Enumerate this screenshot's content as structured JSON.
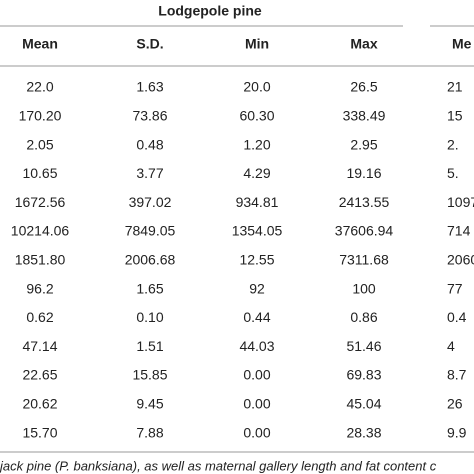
{
  "table": {
    "group_title": "Lodgepole pine",
    "columns": [
      "Mean",
      "S.D.",
      "Min",
      "Max",
      "Me"
    ],
    "rows": [
      [
        "22.0",
        "1.63",
        "20.0",
        "26.5",
        "21"
      ],
      [
        "170.20",
        "73.86",
        "60.30",
        "338.49",
        "15"
      ],
      [
        "2.05",
        "0.48",
        "1.20",
        "2.95",
        "2."
      ],
      [
        "10.65",
        "3.77",
        "4.29",
        "19.16",
        "5."
      ],
      [
        "1672.56",
        "397.02",
        "934.81",
        "2413.55",
        "1097"
      ],
      [
        "10214.06",
        "7849.05",
        "1354.05",
        "37606.94",
        "714"
      ],
      [
        "1851.80",
        "2006.68",
        "12.55",
        "7311.68",
        "2060"
      ],
      [
        "96.2",
        "1.65",
        "92",
        "100",
        "77"
      ],
      [
        "0.62",
        "0.10",
        "0.44",
        "0.86",
        "0.4"
      ],
      [
        "47.14",
        "1.51",
        "44.03",
        "51.46",
        "4"
      ],
      [
        "22.65",
        "15.85",
        "0.00",
        "69.83",
        "8.7"
      ],
      [
        "20.62",
        "9.45",
        "0.00",
        "45.04",
        "26"
      ],
      [
        "15.70",
        "7.88",
        "0.00",
        "28.38",
        "9.9"
      ]
    ],
    "footnote": "jack pine (P. banksiana), as well as maternal gallery length and fat content c"
  }
}
